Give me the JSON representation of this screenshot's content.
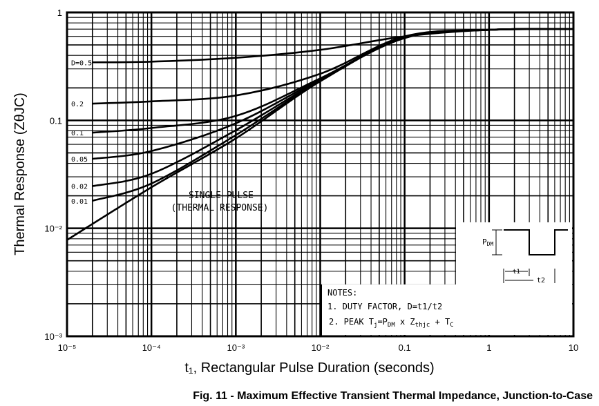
{
  "chart_data": {
    "type": "line",
    "title": "",
    "xlabel": "t₁, Rectangular Pulse Duration (seconds)",
    "ylabel": "Thermal Response (ZθJC)",
    "x_scale": "log",
    "y_scale": "log",
    "xlim": [
      1e-05,
      10
    ],
    "ylim": [
      0.001,
      1
    ],
    "grid": true,
    "x_tick_labels": [
      "10⁻⁵",
      "10⁻⁴",
      "10⁻³",
      "10⁻²",
      "0.1",
      "1",
      "10"
    ],
    "y_tick_labels": [
      "1",
      "0.1",
      "10⁻²",
      "10⁻³"
    ],
    "series": [
      {
        "name": "D=0.5",
        "x": [
          2e-05,
          0.0001,
          0.001,
          0.01,
          0.1,
          1,
          10
        ],
        "y": [
          0.345,
          0.35,
          0.38,
          0.45,
          0.6,
          0.69,
          0.7
        ]
      },
      {
        "name": "0.2",
        "x": [
          2e-05,
          0.0001,
          0.001,
          0.01,
          0.1,
          1,
          10
        ],
        "y": [
          0.143,
          0.15,
          0.17,
          0.27,
          0.6,
          0.69,
          0.7
        ]
      },
      {
        "name": "0.1",
        "x": [
          2e-05,
          0.0001,
          0.001,
          0.01,
          0.1,
          1,
          10
        ],
        "y": [
          0.077,
          0.085,
          0.11,
          0.245,
          0.59,
          0.69,
          0.7
        ]
      },
      {
        "name": "0.05",
        "x": [
          2e-05,
          0.0001,
          0.001,
          0.01,
          0.1,
          1,
          10
        ],
        "y": [
          0.044,
          0.052,
          0.094,
          0.24,
          0.585,
          0.69,
          0.7
        ]
      },
      {
        "name": "0.02",
        "x": [
          2e-05,
          0.0001,
          0.001,
          0.01,
          0.1,
          1,
          10
        ],
        "y": [
          0.0246,
          0.032,
          0.081,
          0.235,
          0.58,
          0.69,
          0.7
        ]
      },
      {
        "name": "0.01",
        "x": [
          2e-05,
          0.0001,
          0.001,
          0.01,
          0.1,
          1,
          10
        ],
        "y": [
          0.018,
          0.026,
          0.073,
          0.232,
          0.58,
          0.69,
          0.7
        ]
      },
      {
        "name": "SINGLE PULSE",
        "x": [
          1e-05,
          0.0001,
          0.001,
          0.01,
          0.1,
          1,
          10
        ],
        "y": [
          0.0078,
          0.024,
          0.068,
          0.23,
          0.58,
          0.69,
          0.7
        ]
      }
    ],
    "annotations": {
      "single_pulse_line1": "SINGLE PULSE",
      "single_pulse_line2": "(THERMAL RESPONSE)",
      "notes_title": "NOTES:",
      "note1": "1. DUTY FACTOR, D=t1/t2",
      "note2_prefix": "2. PEAK T",
      "note2_j": "j",
      "note2_mid": "=P",
      "note2_dm": "DM",
      "note2_x": " x Z",
      "note2_thjc": "thjc",
      "note2_plus": " + T",
      "note2_c": "C",
      "pdm_label": "P",
      "pdm_sub": "DM",
      "t1_label": "t1",
      "t2_label": "t2"
    },
    "line_color": "#000000"
  },
  "caption": "Fig. 11 - Maximum Effective Transient Thermal Impedance, Junction-to-Case"
}
